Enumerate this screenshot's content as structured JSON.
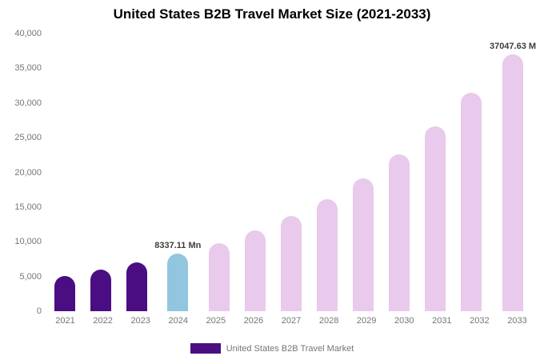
{
  "chart_data": {
    "type": "bar",
    "title": "United States B2B Travel Market Size (2021-2033)",
    "categories": [
      "2021",
      "2022",
      "2023",
      "2024",
      "2025",
      "2026",
      "2027",
      "2028",
      "2029",
      "2030",
      "2031",
      "2032",
      "2033"
    ],
    "values": [
      5070,
      5980,
      7060,
      8337.11,
      9840,
      11620,
      13710,
      16190,
      19110,
      22560,
      26630,
      31440,
      37047.63
    ],
    "bar_colors": [
      "#4a0e82",
      "#4a0e82",
      "#4a0e82",
      "#92c5de",
      "#e9c9ec",
      "#e9c9ec",
      "#e9c9ec",
      "#e9c9ec",
      "#e9c9ec",
      "#e9c9ec",
      "#e9c9ec",
      "#e9c9ec",
      "#e9c9ec"
    ],
    "annotations": {
      "2024": "8337.11 Mn",
      "2033": "37047.63 M"
    },
    "ylim": [
      0,
      40000
    ],
    "yticks": [
      {
        "value": 0,
        "label": "0"
      },
      {
        "value": 5000,
        "label": "5,000"
      },
      {
        "value": 10000,
        "label": "10,000"
      },
      {
        "value": 15000,
        "label": "15,000"
      },
      {
        "value": 20000,
        "label": "20,000"
      },
      {
        "value": 25000,
        "label": "25,000"
      },
      {
        "value": 30000,
        "label": "30,000"
      },
      {
        "value": 35000,
        "label": "35,000"
      },
      {
        "value": 40000,
        "label": "40,000"
      }
    ],
    "grid": false,
    "legend_position": "bottom",
    "legend": {
      "label": "United States B2B Travel Market",
      "swatch_color": "#4a0e82"
    }
  }
}
